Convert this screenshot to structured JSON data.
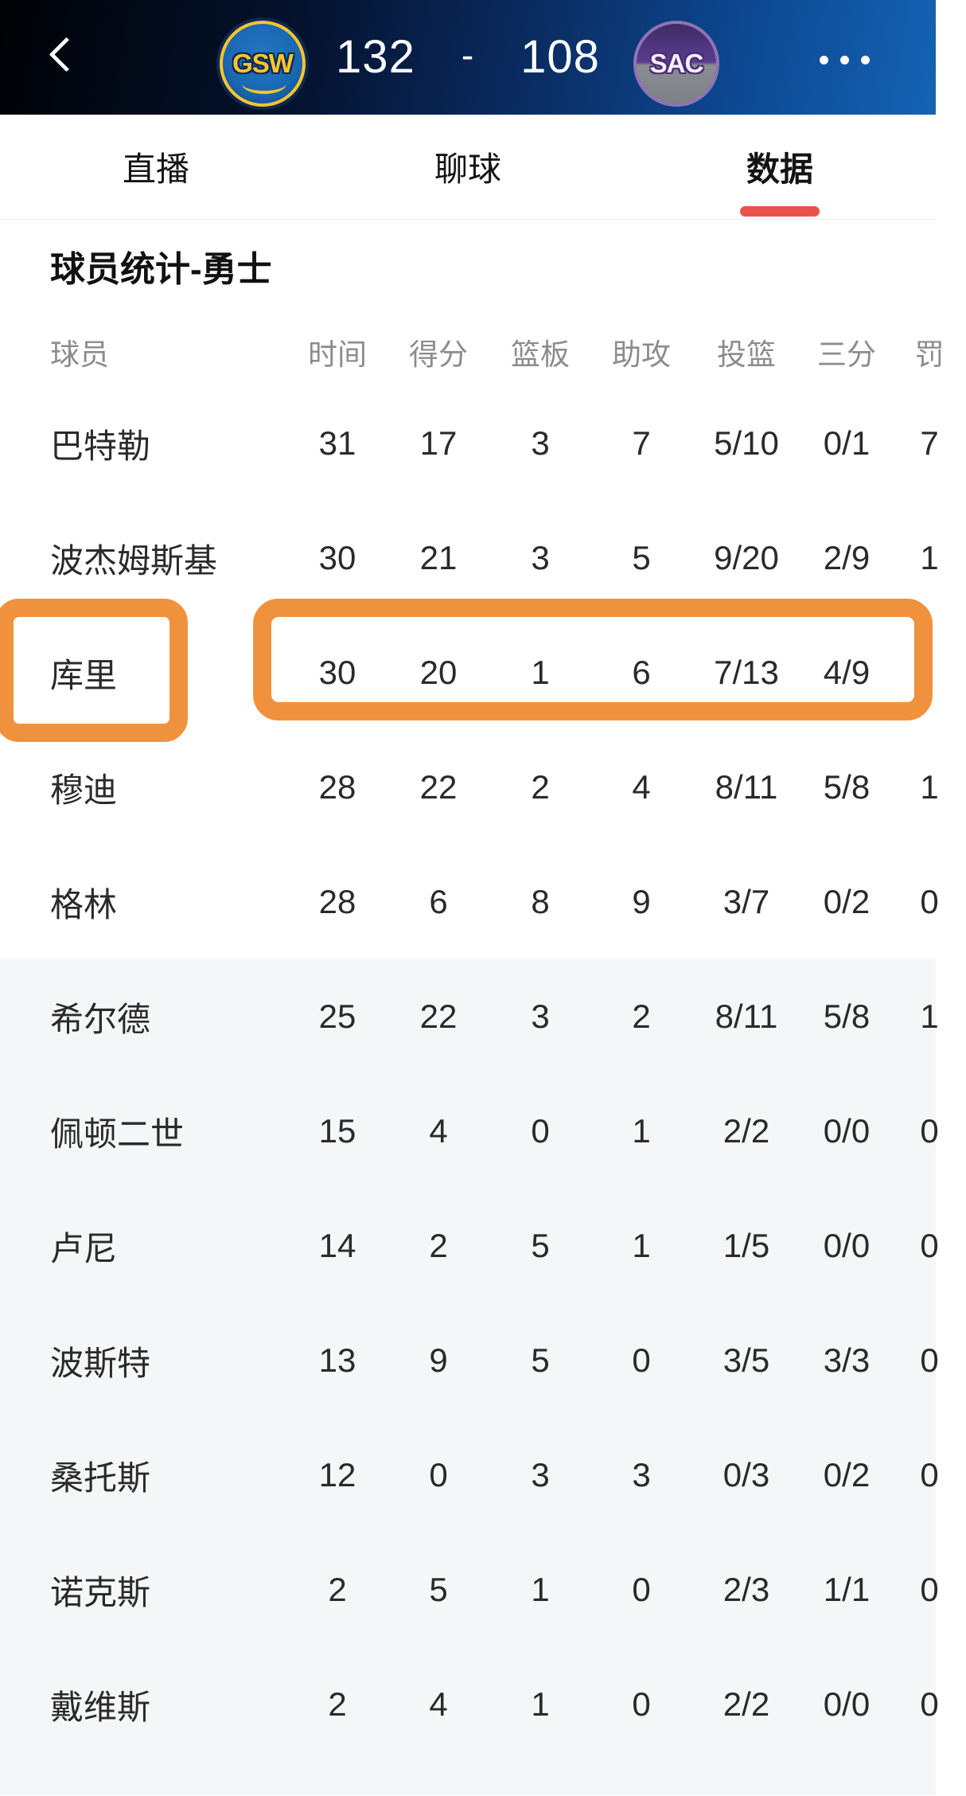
{
  "colors": {
    "header_gradient_start": "#000205",
    "header_gradient_mid": "#0a2a5e",
    "header_gradient_end": "#1563b4",
    "tab_underline": "#e8544c",
    "highlight": "#f0923d",
    "bench_bg": "#f5f6f7",
    "cell_text": "#2a2a2a",
    "muted_text": "#8c8c8c"
  },
  "header": {
    "icons": {
      "back": "chevron-left",
      "more": "ellipsis-horizontal"
    },
    "home_team": {
      "abbr": "GSW",
      "bg": "#1a67b2",
      "ring": "#fdc52c",
      "text_color": "#fdc52c"
    },
    "away_team": {
      "abbr": "SAC",
      "bg": "#5b3d8e",
      "ring": "#8f74b5",
      "text_color": "#f4eef9"
    },
    "score": {
      "home": "132",
      "separator": "-",
      "away": "108"
    }
  },
  "tabs": [
    {
      "label": "直播",
      "active": false
    },
    {
      "label": "聊球",
      "active": false
    },
    {
      "label": "数据",
      "active": true
    }
  ],
  "section": {
    "title": "球员统计-勇士"
  },
  "table": {
    "columns": [
      "球员",
      "时间",
      "得分",
      "篮板",
      "助攻",
      "投篮",
      "三分",
      "罚"
    ],
    "highlighted_player": "库里",
    "rows": [
      {
        "name": "巴特勒",
        "min": "31",
        "pts": "17",
        "reb": "3",
        "ast": "7",
        "fg": "5/10",
        "tp": "0/1",
        "ft": "7"
      },
      {
        "name": "波杰姆斯基",
        "min": "30",
        "pts": "21",
        "reb": "3",
        "ast": "5",
        "fg": "9/20",
        "tp": "2/9",
        "ft": "1"
      },
      {
        "name": "库里",
        "min": "30",
        "pts": "20",
        "reb": "1",
        "ast": "6",
        "fg": "7/13",
        "tp": "4/9",
        "ft": ""
      },
      {
        "name": "穆迪",
        "min": "28",
        "pts": "22",
        "reb": "2",
        "ast": "4",
        "fg": "8/11",
        "tp": "5/8",
        "ft": "1"
      },
      {
        "name": "格林",
        "min": "28",
        "pts": "6",
        "reb": "8",
        "ast": "9",
        "fg": "3/7",
        "tp": "0/2",
        "ft": "0"
      },
      {
        "name": "希尔德",
        "min": "25",
        "pts": "22",
        "reb": "3",
        "ast": "2",
        "fg": "8/11",
        "tp": "5/8",
        "ft": "1"
      },
      {
        "name": "佩顿二世",
        "min": "15",
        "pts": "4",
        "reb": "0",
        "ast": "1",
        "fg": "2/2",
        "tp": "0/0",
        "ft": "0"
      },
      {
        "name": "卢尼",
        "min": "14",
        "pts": "2",
        "reb": "5",
        "ast": "1",
        "fg": "1/5",
        "tp": "0/0",
        "ft": "0"
      },
      {
        "name": "波斯特",
        "min": "13",
        "pts": "9",
        "reb": "5",
        "ast": "0",
        "fg": "3/5",
        "tp": "3/3",
        "ft": "0"
      },
      {
        "name": "桑托斯",
        "min": "12",
        "pts": "0",
        "reb": "3",
        "ast": "3",
        "fg": "0/3",
        "tp": "0/2",
        "ft": "0"
      },
      {
        "name": "诺克斯",
        "min": "2",
        "pts": "5",
        "reb": "1",
        "ast": "0",
        "fg": "2/3",
        "tp": "1/1",
        "ft": "0"
      },
      {
        "name": "戴维斯",
        "min": "2",
        "pts": "4",
        "reb": "1",
        "ast": "0",
        "fg": "2/2",
        "tp": "0/0",
        "ft": "0"
      }
    ]
  }
}
